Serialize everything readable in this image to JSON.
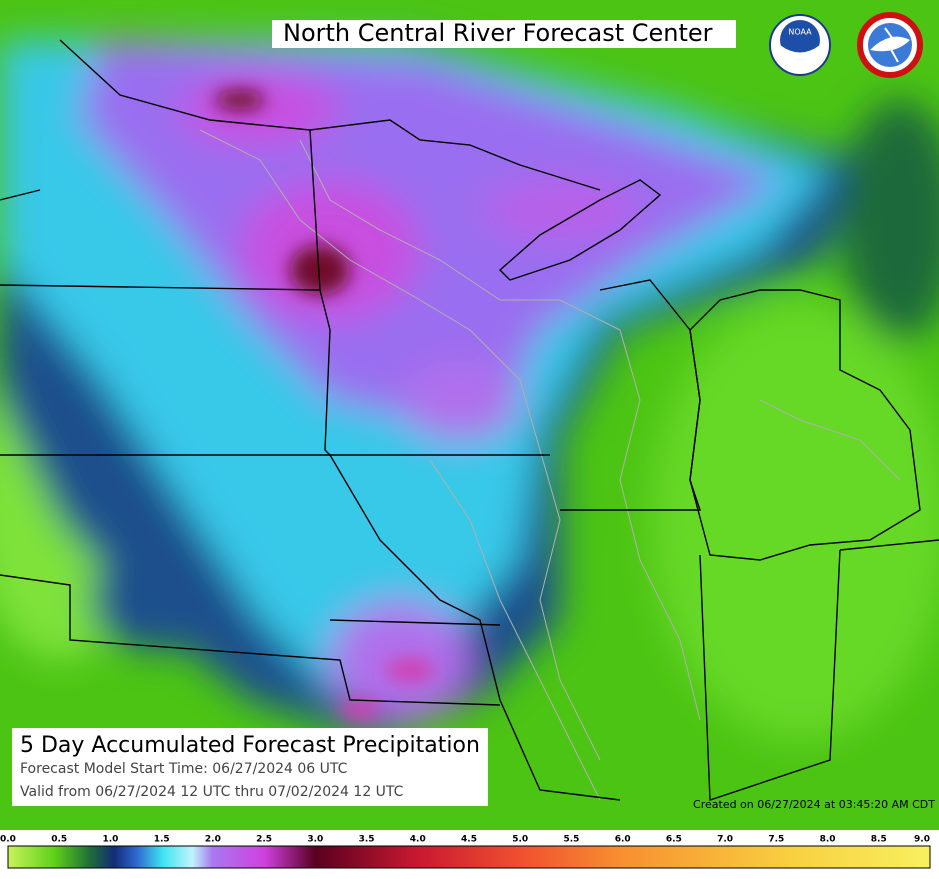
{
  "header": {
    "title": "North Central River Forecast Center"
  },
  "info_box": {
    "title": "5 Day Accumulated Forecast Precipitation",
    "start_time": "Forecast Model Start Time:  06/27/2024 06 UTC",
    "valid": "Valid from 06/27/2024 12 UTC thru 07/02/2024 12 UTC"
  },
  "created": "Created on 06/27/2024 at 03:45:20 AM CDT",
  "logos": {
    "noaa": "NOAA"
  },
  "colorbar": {
    "ticks": [
      "0.0",
      "0.5",
      "1.0",
      "1.5",
      "2.0",
      "2.5",
      "3.0",
      "3.5",
      "4.0",
      "4.5",
      "5.0",
      "5.5",
      "6.0",
      "6.5",
      "7.0",
      "7.5",
      "8.0",
      "8.5",
      "9.0"
    ]
  }
}
